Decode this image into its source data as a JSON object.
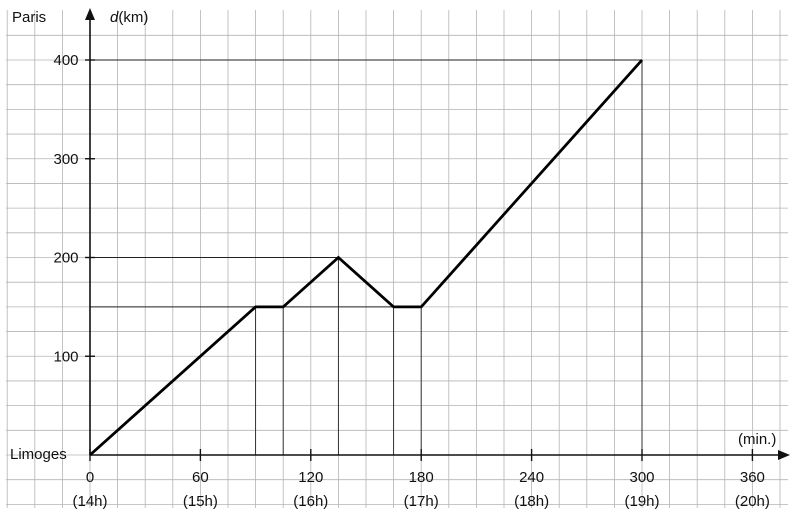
{
  "chart_data": {
    "type": "line",
    "x_axis": {
      "unit": "(min.)",
      "range": [
        0,
        360
      ],
      "ticks": [
        0,
        60,
        120,
        180,
        240,
        300,
        360
      ],
      "tick_labels": [
        "0",
        "60",
        "120",
        "180",
        "240",
        "300",
        "360"
      ],
      "time_labels": [
        "(14h)",
        "(15h)",
        "(16h)",
        "(17h)",
        "(18h)",
        "(19h)",
        "(20h)"
      ],
      "origin_label": "Limoges"
    },
    "y_axis": {
      "var": "d",
      "unit": "(km)",
      "range": [
        0,
        400
      ],
      "ticks": [
        100,
        200,
        300,
        400
      ],
      "tick_labels": [
        "100",
        "200",
        "300",
        "400"
      ],
      "top_label": "Paris"
    },
    "series": [
      {
        "points": [
          {
            "x": 0,
            "y": 0
          },
          {
            "x": 90,
            "y": 150
          },
          {
            "x": 105,
            "y": 150
          },
          {
            "x": 135,
            "y": 200
          },
          {
            "x": 165,
            "y": 150
          },
          {
            "x": 180,
            "y": 150
          },
          {
            "x": 300,
            "y": 400
          }
        ]
      }
    ],
    "grid": true
  }
}
